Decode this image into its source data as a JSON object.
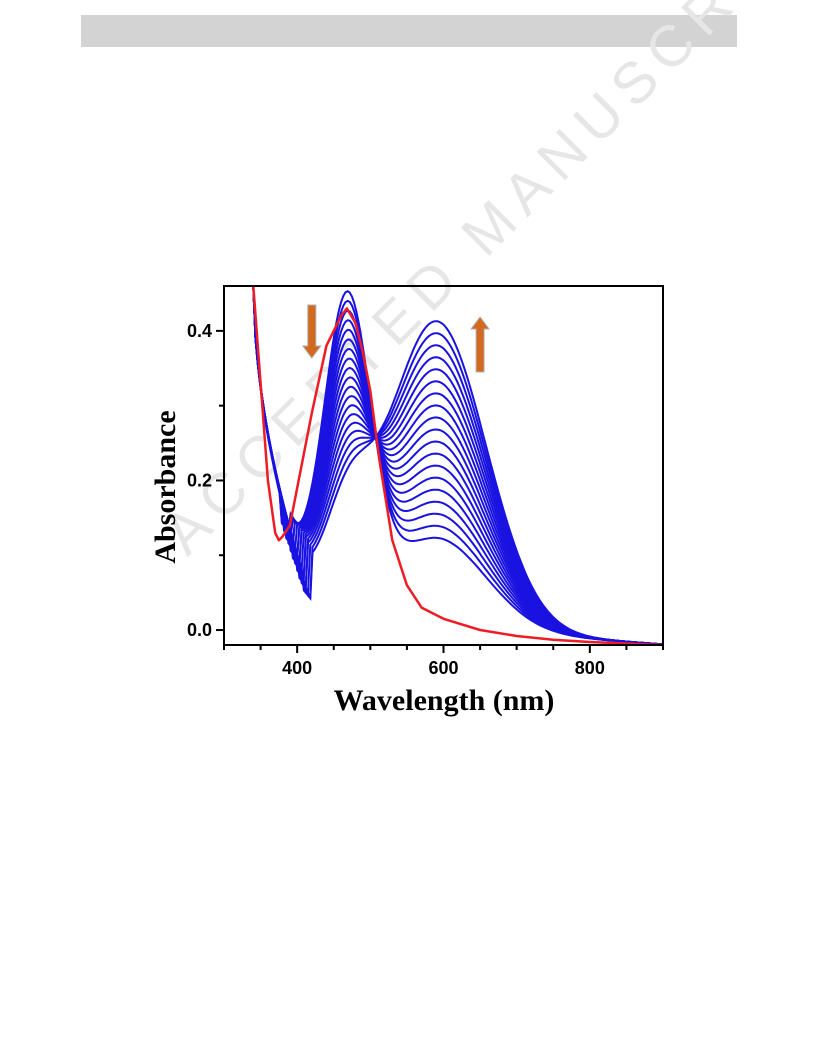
{
  "watermark_text": "ACCEPTED MANUSCRIPT",
  "chart_data": {
    "type": "line",
    "xlabel": "Wavelength (nm)",
    "ylabel": "Absorbance",
    "xlim": [
      300,
      900
    ],
    "ylim": [
      -0.02,
      0.46
    ],
    "xticks": [
      400,
      600,
      800
    ],
    "yticks": [
      0.0,
      0.2,
      0.4
    ],
    "ytick_labels": [
      "0.0",
      "0.2",
      "0.4"
    ],
    "grid": false,
    "isosbestic_point": {
      "x": 512,
      "y": 0.23
    },
    "trend_arrows": [
      {
        "direction": "down",
        "x_data": 420,
        "color": "#d2691e"
      },
      {
        "direction": "up",
        "x_data": 650,
        "color": "#d2691e"
      }
    ],
    "initial_spectrum": {
      "color": "#ee1c25",
      "x": [
        340,
        350,
        360,
        370,
        375,
        380,
        390,
        400,
        420,
        440,
        460,
        468,
        480,
        490,
        500,
        512,
        530,
        550,
        570,
        600,
        650,
        700,
        750,
        800,
        850,
        900
      ],
      "y": [
        0.46,
        0.33,
        0.2,
        0.13,
        0.12,
        0.125,
        0.14,
        0.19,
        0.29,
        0.38,
        0.42,
        0.43,
        0.41,
        0.37,
        0.32,
        0.23,
        0.12,
        0.06,
        0.03,
        0.015,
        0.0,
        -0.008,
        -0.013,
        -0.016,
        -0.018,
        -0.02
      ]
    },
    "titration_spectra": {
      "color": "#1a12e0",
      "count": 19,
      "band1_peak_x": 468,
      "band1_peak_y_first": 0.415,
      "band1_peak_y_last": 0.12,
      "trough_x_first": 388,
      "trough_x_last": 420,
      "trough_y_first": 0.135,
      "trough_y_last": 0.04,
      "band2_peak_x": 590,
      "band2_peak_y_first": 0.12,
      "band2_peak_y_last": 0.41
    }
  }
}
